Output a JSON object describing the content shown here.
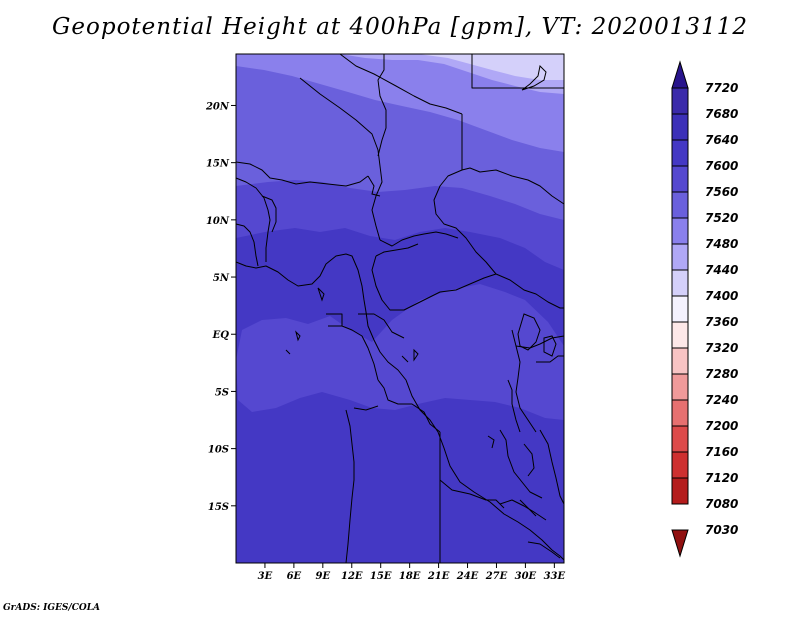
{
  "title": "Geopotential Height at 400hPa [gpm], VT: 2020013112",
  "credit": "GrADS: IGES/COLA",
  "map": {
    "lon_range": [
      0,
      34
    ],
    "lat_range": [
      -20,
      24.5
    ],
    "lat_ticks": [
      {
        "value": 20,
        "label": "20N"
      },
      {
        "value": 15,
        "label": "15N"
      },
      {
        "value": 10,
        "label": "10N"
      },
      {
        "value": 5,
        "label": "5N"
      },
      {
        "value": 0,
        "label": "EQ"
      },
      {
        "value": -5,
        "label": "5S"
      },
      {
        "value": -10,
        "label": "10S"
      },
      {
        "value": -15,
        "label": "15S"
      }
    ],
    "lon_ticks": [
      {
        "value": 3,
        "label": "3E"
      },
      {
        "value": 6,
        "label": "6E"
      },
      {
        "value": 9,
        "label": "9E"
      },
      {
        "value": 12,
        "label": "12E"
      },
      {
        "value": 15,
        "label": "15E"
      },
      {
        "value": 18,
        "label": "18E"
      },
      {
        "value": 21,
        "label": "21E"
      },
      {
        "value": 24,
        "label": "24E"
      },
      {
        "value": 27,
        "label": "27E"
      },
      {
        "value": 30,
        "label": "30E"
      },
      {
        "value": 33,
        "label": "33E"
      }
    ]
  },
  "colorbar": {
    "labels": [
      "7720",
      "7680",
      "7640",
      "7600",
      "7560",
      "7520",
      "7480",
      "7440",
      "7400",
      "7360",
      "7320",
      "7280",
      "7240",
      "7200",
      "7160",
      "7120",
      "7080",
      "7030"
    ],
    "colors": [
      "#28148c",
      "#3a2aaa",
      "#3c30b8",
      "#4438c4",
      "#5548d0",
      "#6a60dc",
      "#8a80ec",
      "#b0a8f6",
      "#d4d0fa",
      "#f4f2fe",
      "#fde8e8",
      "#f8c4c4",
      "#f09a9a",
      "#e67070",
      "#dc4a4a",
      "#ce3030",
      "#b41c1c",
      "#901010"
    ]
  },
  "colors": {
    "c7400": "#d4d0fa",
    "c7440": "#b0a8f6",
    "c7480": "#8a80ec",
    "c7520": "#6a60dc",
    "c7560": "#5548d0",
    "c7600": "#4438c4"
  }
}
